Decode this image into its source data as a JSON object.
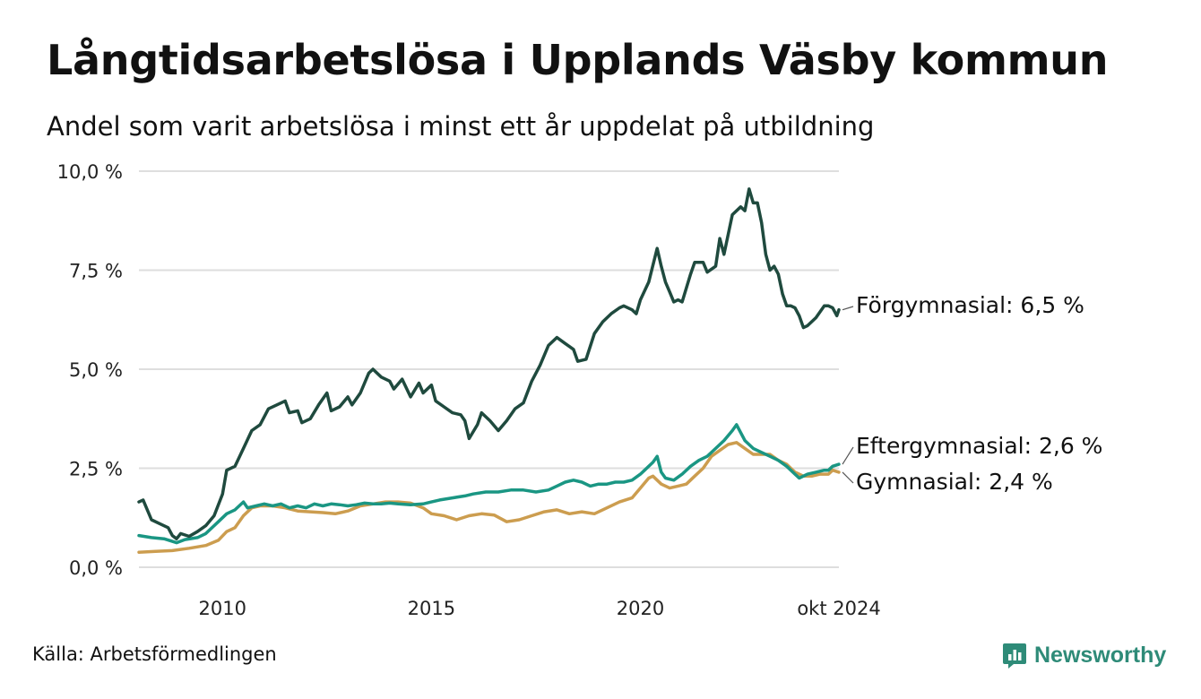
{
  "title": "Långtidsarbetslösa i Upplands Väsby kommun",
  "subtitle": "Andel som varit arbetslösa i minst ett år uppdelat på utbildning",
  "source": "Källa: Arbetsförmedlingen",
  "brand": "Newsworthy",
  "colors": {
    "forgymnasial": "#1f4a3e",
    "eftergymnasial": "#1a9683",
    "gymnasial": "#cc9d4f",
    "grid": "#dedede",
    "brand": "#2e8b78"
  },
  "chart_data": {
    "type": "line",
    "title": "Långtidsarbetslösa i Upplands Väsby kommun",
    "subtitle": "Andel som varit arbetslösa i minst ett år uppdelat på utbildning",
    "xlabel": "",
    "ylabel": "",
    "xlim": [
      2008.0,
      2024.75
    ],
    "ylim": [
      0,
      10
    ],
    "y_ticks": [
      0,
      2.5,
      5,
      7.5,
      10
    ],
    "y_tick_labels": [
      "0,0 %",
      "2,5 %",
      "5,0 %",
      "7,5 %",
      "10,0 %"
    ],
    "x_ticks": [
      2010,
      2015,
      2020,
      2024.75
    ],
    "x_tick_labels": [
      "2010",
      "2015",
      "2020",
      "okt 2024"
    ],
    "grid": true,
    "series": [
      {
        "name": "Förgymnasial",
        "color": "#1f4a3e",
        "end_label": "Förgymnasial: 6,5 %",
        "points": [
          [
            2008.0,
            1.65
          ],
          [
            2008.1,
            1.7
          ],
          [
            2008.3,
            1.2
          ],
          [
            2008.5,
            1.1
          ],
          [
            2008.7,
            1.0
          ],
          [
            2008.8,
            0.8
          ],
          [
            2008.9,
            0.72
          ],
          [
            2009.0,
            0.85
          ],
          [
            2009.2,
            0.78
          ],
          [
            2009.4,
            0.9
          ],
          [
            2009.6,
            1.05
          ],
          [
            2009.8,
            1.3
          ],
          [
            2010.0,
            1.85
          ],
          [
            2010.1,
            2.45
          ],
          [
            2010.3,
            2.55
          ],
          [
            2010.5,
            3.0
          ],
          [
            2010.7,
            3.45
          ],
          [
            2010.9,
            3.6
          ],
          [
            2011.1,
            4.0
          ],
          [
            2011.3,
            4.1
          ],
          [
            2011.5,
            4.2
          ],
          [
            2011.6,
            3.9
          ],
          [
            2011.8,
            3.95
          ],
          [
            2011.9,
            3.65
          ],
          [
            2012.1,
            3.75
          ],
          [
            2012.3,
            4.1
          ],
          [
            2012.5,
            4.4
          ],
          [
            2012.6,
            3.95
          ],
          [
            2012.8,
            4.05
          ],
          [
            2013.0,
            4.3
          ],
          [
            2013.1,
            4.1
          ],
          [
            2013.3,
            4.4
          ],
          [
            2013.5,
            4.9
          ],
          [
            2013.6,
            5.0
          ],
          [
            2013.8,
            4.8
          ],
          [
            2014.0,
            4.7
          ],
          [
            2014.1,
            4.5
          ],
          [
            2014.3,
            4.75
          ],
          [
            2014.5,
            4.3
          ],
          [
            2014.7,
            4.65
          ],
          [
            2014.8,
            4.4
          ],
          [
            2015.0,
            4.6
          ],
          [
            2015.1,
            4.2
          ],
          [
            2015.3,
            4.05
          ],
          [
            2015.5,
            3.9
          ],
          [
            2015.7,
            3.85
          ],
          [
            2015.8,
            3.7
          ],
          [
            2015.9,
            3.25
          ],
          [
            2016.1,
            3.6
          ],
          [
            2016.2,
            3.9
          ],
          [
            2016.4,
            3.7
          ],
          [
            2016.6,
            3.45
          ],
          [
            2016.8,
            3.7
          ],
          [
            2017.0,
            4.0
          ],
          [
            2017.2,
            4.15
          ],
          [
            2017.4,
            4.7
          ],
          [
            2017.6,
            5.1
          ],
          [
            2017.8,
            5.6
          ],
          [
            2018.0,
            5.8
          ],
          [
            2018.2,
            5.65
          ],
          [
            2018.4,
            5.5
          ],
          [
            2018.5,
            5.2
          ],
          [
            2018.7,
            5.25
          ],
          [
            2018.9,
            5.9
          ],
          [
            2019.1,
            6.2
          ],
          [
            2019.3,
            6.4
          ],
          [
            2019.5,
            6.55
          ],
          [
            2019.6,
            6.6
          ],
          [
            2019.8,
            6.5
          ],
          [
            2019.9,
            6.4
          ],
          [
            2020.0,
            6.75
          ],
          [
            2020.2,
            7.2
          ],
          [
            2020.4,
            8.05
          ],
          [
            2020.5,
            7.6
          ],
          [
            2020.6,
            7.2
          ],
          [
            2020.7,
            6.95
          ],
          [
            2020.8,
            6.7
          ],
          [
            2020.9,
            6.75
          ],
          [
            2021.0,
            6.7
          ],
          [
            2021.2,
            7.4
          ],
          [
            2021.3,
            7.7
          ],
          [
            2021.5,
            7.7
          ],
          [
            2021.6,
            7.45
          ],
          [
            2021.8,
            7.6
          ],
          [
            2021.9,
            8.3
          ],
          [
            2022.0,
            7.9
          ],
          [
            2022.2,
            8.9
          ],
          [
            2022.4,
            9.1
          ],
          [
            2022.5,
            9.0
          ],
          [
            2022.6,
            9.55
          ],
          [
            2022.7,
            9.2
          ],
          [
            2022.8,
            9.2
          ],
          [
            2022.9,
            8.7
          ],
          [
            2023.0,
            7.9
          ],
          [
            2023.1,
            7.5
          ],
          [
            2023.2,
            7.6
          ],
          [
            2023.3,
            7.4
          ],
          [
            2023.4,
            6.9
          ],
          [
            2023.5,
            6.6
          ],
          [
            2023.6,
            6.6
          ],
          [
            2023.7,
            6.55
          ],
          [
            2023.8,
            6.35
          ],
          [
            2023.9,
            6.05
          ],
          [
            2024.0,
            6.1
          ],
          [
            2024.2,
            6.3
          ],
          [
            2024.4,
            6.6
          ],
          [
            2024.5,
            6.6
          ],
          [
            2024.6,
            6.55
          ],
          [
            2024.7,
            6.35
          ],
          [
            2024.75,
            6.5
          ]
        ]
      },
      {
        "name": "Eftergymnasial",
        "color": "#1a9683",
        "end_label": "Eftergymnasial: 2,6 %",
        "points": [
          [
            2008.0,
            0.8
          ],
          [
            2008.3,
            0.75
          ],
          [
            2008.6,
            0.72
          ],
          [
            2008.9,
            0.62
          ],
          [
            2009.1,
            0.7
          ],
          [
            2009.4,
            0.75
          ],
          [
            2009.6,
            0.85
          ],
          [
            2009.9,
            1.15
          ],
          [
            2010.1,
            1.35
          ],
          [
            2010.3,
            1.45
          ],
          [
            2010.5,
            1.65
          ],
          [
            2010.6,
            1.5
          ],
          [
            2010.8,
            1.55
          ],
          [
            2011.0,
            1.6
          ],
          [
            2011.2,
            1.55
          ],
          [
            2011.4,
            1.6
          ],
          [
            2011.6,
            1.5
          ],
          [
            2011.8,
            1.55
          ],
          [
            2012.0,
            1.5
          ],
          [
            2012.2,
            1.6
          ],
          [
            2012.4,
            1.55
          ],
          [
            2012.6,
            1.6
          ],
          [
            2012.8,
            1.58
          ],
          [
            2013.0,
            1.55
          ],
          [
            2013.2,
            1.58
          ],
          [
            2013.4,
            1.62
          ],
          [
            2013.6,
            1.6
          ],
          [
            2013.8,
            1.6
          ],
          [
            2014.0,
            1.62
          ],
          [
            2014.2,
            1.6
          ],
          [
            2014.5,
            1.58
          ],
          [
            2014.8,
            1.6
          ],
          [
            2015.0,
            1.65
          ],
          [
            2015.2,
            1.7
          ],
          [
            2015.5,
            1.75
          ],
          [
            2015.8,
            1.8
          ],
          [
            2016.0,
            1.85
          ],
          [
            2016.3,
            1.9
          ],
          [
            2016.6,
            1.9
          ],
          [
            2016.9,
            1.95
          ],
          [
            2017.2,
            1.95
          ],
          [
            2017.5,
            1.9
          ],
          [
            2017.8,
            1.95
          ],
          [
            2018.0,
            2.05
          ],
          [
            2018.2,
            2.15
          ],
          [
            2018.4,
            2.2
          ],
          [
            2018.6,
            2.15
          ],
          [
            2018.8,
            2.05
          ],
          [
            2019.0,
            2.1
          ],
          [
            2019.2,
            2.1
          ],
          [
            2019.4,
            2.15
          ],
          [
            2019.6,
            2.15
          ],
          [
            2019.8,
            2.2
          ],
          [
            2020.0,
            2.35
          ],
          [
            2020.1,
            2.45
          ],
          [
            2020.3,
            2.65
          ],
          [
            2020.4,
            2.8
          ],
          [
            2020.5,
            2.4
          ],
          [
            2020.6,
            2.25
          ],
          [
            2020.8,
            2.2
          ],
          [
            2021.0,
            2.35
          ],
          [
            2021.2,
            2.55
          ],
          [
            2021.4,
            2.7
          ],
          [
            2021.6,
            2.8
          ],
          [
            2021.8,
            3.0
          ],
          [
            2022.0,
            3.2
          ],
          [
            2022.2,
            3.45
          ],
          [
            2022.3,
            3.6
          ],
          [
            2022.4,
            3.4
          ],
          [
            2022.5,
            3.2
          ],
          [
            2022.7,
            3.0
          ],
          [
            2022.9,
            2.9
          ],
          [
            2023.1,
            2.8
          ],
          [
            2023.3,
            2.7
          ],
          [
            2023.5,
            2.55
          ],
          [
            2023.7,
            2.35
          ],
          [
            2023.8,
            2.25
          ],
          [
            2024.0,
            2.35
          ],
          [
            2024.2,
            2.4
          ],
          [
            2024.4,
            2.45
          ],
          [
            2024.5,
            2.45
          ],
          [
            2024.6,
            2.55
          ],
          [
            2024.75,
            2.6
          ]
        ]
      },
      {
        "name": "Gymnasial",
        "color": "#cc9d4f",
        "end_label": "Gymnasial: 2,4 %",
        "points": [
          [
            2008.0,
            0.38
          ],
          [
            2008.4,
            0.4
          ],
          [
            2008.8,
            0.42
          ],
          [
            2009.2,
            0.48
          ],
          [
            2009.6,
            0.55
          ],
          [
            2009.9,
            0.68
          ],
          [
            2010.1,
            0.9
          ],
          [
            2010.3,
            1.0
          ],
          [
            2010.5,
            1.3
          ],
          [
            2010.7,
            1.5
          ],
          [
            2010.9,
            1.55
          ],
          [
            2011.2,
            1.55
          ],
          [
            2011.5,
            1.5
          ],
          [
            2011.8,
            1.42
          ],
          [
            2012.1,
            1.4
          ],
          [
            2012.4,
            1.38
          ],
          [
            2012.7,
            1.35
          ],
          [
            2013.0,
            1.42
          ],
          [
            2013.3,
            1.55
          ],
          [
            2013.6,
            1.6
          ],
          [
            2013.9,
            1.65
          ],
          [
            2014.2,
            1.65
          ],
          [
            2014.5,
            1.62
          ],
          [
            2014.8,
            1.5
          ],
          [
            2015.0,
            1.35
          ],
          [
            2015.3,
            1.3
          ],
          [
            2015.6,
            1.2
          ],
          [
            2015.9,
            1.3
          ],
          [
            2016.2,
            1.35
          ],
          [
            2016.5,
            1.32
          ],
          [
            2016.8,
            1.15
          ],
          [
            2017.1,
            1.2
          ],
          [
            2017.4,
            1.3
          ],
          [
            2017.7,
            1.4
          ],
          [
            2018.0,
            1.45
          ],
          [
            2018.3,
            1.35
          ],
          [
            2018.6,
            1.4
          ],
          [
            2018.9,
            1.35
          ],
          [
            2019.2,
            1.5
          ],
          [
            2019.5,
            1.65
          ],
          [
            2019.8,
            1.75
          ],
          [
            2020.0,
            2.0
          ],
          [
            2020.2,
            2.25
          ],
          [
            2020.3,
            2.3
          ],
          [
            2020.5,
            2.1
          ],
          [
            2020.7,
            2.0
          ],
          [
            2020.9,
            2.05
          ],
          [
            2021.1,
            2.1
          ],
          [
            2021.3,
            2.3
          ],
          [
            2021.5,
            2.5
          ],
          [
            2021.7,
            2.8
          ],
          [
            2021.9,
            2.95
          ],
          [
            2022.1,
            3.1
          ],
          [
            2022.3,
            3.15
          ],
          [
            2022.5,
            3.0
          ],
          [
            2022.7,
            2.85
          ],
          [
            2022.9,
            2.85
          ],
          [
            2023.1,
            2.85
          ],
          [
            2023.3,
            2.7
          ],
          [
            2023.5,
            2.6
          ],
          [
            2023.7,
            2.4
          ],
          [
            2023.9,
            2.3
          ],
          [
            2024.1,
            2.3
          ],
          [
            2024.3,
            2.35
          ],
          [
            2024.5,
            2.35
          ],
          [
            2024.6,
            2.45
          ],
          [
            2024.75,
            2.4
          ]
        ]
      }
    ]
  }
}
